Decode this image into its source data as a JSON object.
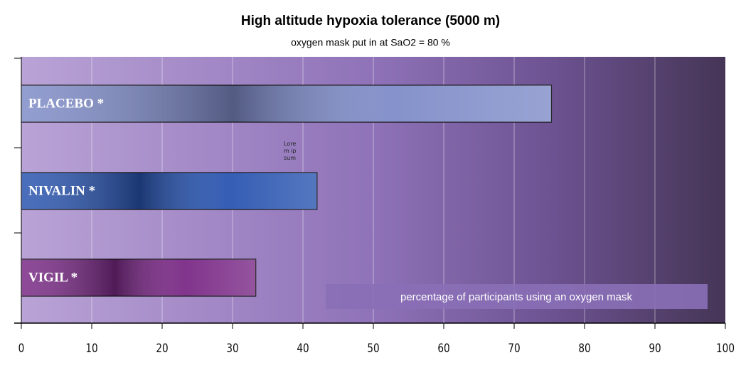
{
  "chart_data": {
    "type": "hbar",
    "title": "High altitude hypoxia tolerance (5000 m)",
    "subtitle": "oxygen mask put in at  SaO2 = 80 %",
    "x_label": "percentage of participants using an oxygen mask",
    "annotation": "Lorem ipsum",
    "categories": [
      "PLACEBO *",
      "NIVALIN *",
      "VIGIL *"
    ],
    "values": [
      75.3,
      42,
      33.3
    ],
    "colors": [
      "#7f8cc8",
      "#2a55b0",
      "#7a2a86"
    ],
    "xlim": [
      0,
      100
    ],
    "xticks": [
      0,
      10,
      20,
      30,
      40,
      50,
      60,
      70,
      80,
      90,
      100
    ],
    "grid": true
  }
}
